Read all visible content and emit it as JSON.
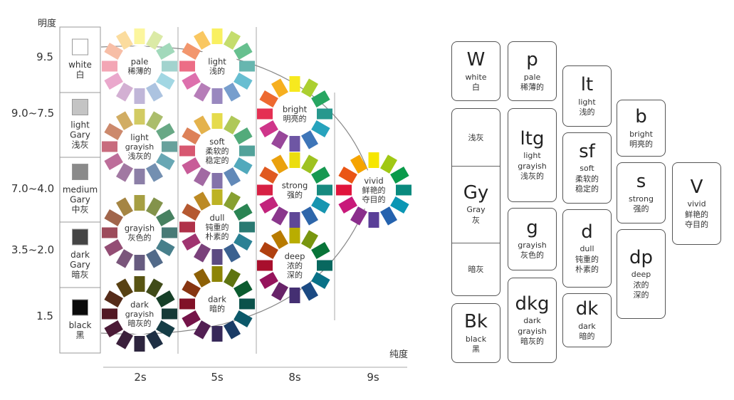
{
  "diagram": {
    "vertical_axis_label": "明度",
    "horizontal_axis_label": "纯度",
    "lightness_ticks": [
      "9.5",
      "9.0~7.5",
      "7.0~4.0",
      "3.5~2.0",
      "1.5"
    ],
    "chroma_ticks": [
      "2s",
      "5s",
      "8s",
      "9s"
    ],
    "grey_scale": [
      {
        "lines": [
          "white",
          "白"
        ],
        "swatch": "#ffffff"
      },
      {
        "lines": [
          "light",
          "Gary",
          "浅灰"
        ],
        "swatch": "#c4c4c4"
      },
      {
        "lines": [
          "medium",
          "Gary",
          "中灰"
        ],
        "swatch": "#8a8a8a"
      },
      {
        "lines": [
          "dark",
          "Gary",
          "暗灰"
        ],
        "swatch": "#444444"
      },
      {
        "lines": [
          "black",
          "黑"
        ],
        "swatch": "#0a0a0a"
      }
    ],
    "wheels": [
      {
        "id": "pale",
        "lines": [
          "pale",
          "稀薄的"
        ],
        "tone": "p"
      },
      {
        "id": "light-grayish",
        "lines": [
          "light",
          "grayish",
          "浅灰的"
        ],
        "tone": "ltg"
      },
      {
        "id": "grayish",
        "lines": [
          "grayish",
          "灰色的"
        ],
        "tone": "g"
      },
      {
        "id": "dark-grayish",
        "lines": [
          "dark",
          "grayish",
          "暗灰的"
        ],
        "tone": "dkg"
      },
      {
        "id": "light",
        "lines": [
          "light",
          "浅的"
        ],
        "tone": "lt"
      },
      {
        "id": "soft",
        "lines": [
          "soft",
          "柔软的",
          "稳定的"
        ],
        "tone": "sf"
      },
      {
        "id": "dull",
        "lines": [
          "dull",
          "钝重的",
          "朴素的"
        ],
        "tone": "d"
      },
      {
        "id": "dark",
        "lines": [
          "dark",
          "暗的"
        ],
        "tone": "dk"
      },
      {
        "id": "bright",
        "lines": [
          "bright",
          "明亮的"
        ],
        "tone": "b"
      },
      {
        "id": "strong",
        "lines": [
          "strong",
          "强的"
        ],
        "tone": "s"
      },
      {
        "id": "deep",
        "lines": [
          "deep",
          "浓的",
          "深的"
        ],
        "tone": "dp"
      },
      {
        "id": "vivid",
        "lines": [
          "vivid",
          "鲜艳的",
          "夺目的"
        ],
        "tone": "v"
      }
    ],
    "hues": [
      "#f6e600",
      "#a0c814",
      "#0a9a4b",
      "#0a8a7e",
      "#0a96b4",
      "#2462ae",
      "#5a3f98",
      "#8a2e8c",
      "#c8197a",
      "#e0143c",
      "#ea5514",
      "#f5a400"
    ]
  },
  "legend": {
    "W": {
      "code": "W",
      "en": "white",
      "zh": "白"
    },
    "p": {
      "code": "p",
      "en": "pale",
      "zh": "稀薄的"
    },
    "lt": {
      "code": "lt",
      "en": "light",
      "zh": "浅的"
    },
    "b": {
      "code": "b",
      "en": "bright",
      "zh": "明亮的"
    },
    "Gy": {
      "upper": "浅灰",
      "code": "Gy",
      "en": "Gray",
      "zh": "灰",
      "lower": "暗灰"
    },
    "ltg": {
      "code": "ltg",
      "en1": "light",
      "en2": "grayish",
      "zh": "浅灰的"
    },
    "sf": {
      "code": "sf",
      "en": "soft",
      "zh1": "柔软的",
      "zh2": "稳定的"
    },
    "s": {
      "code": "s",
      "en": "strong",
      "zh": "强的"
    },
    "V": {
      "code": "V",
      "en": "vivid",
      "zh1": "鲜艳的",
      "zh2": "夺目的"
    },
    "g": {
      "code": "g",
      "en": "grayish",
      "zh": "灰色的"
    },
    "d": {
      "code": "d",
      "en": "dull",
      "zh1": "钝重的",
      "zh2": "朴素的"
    },
    "dp": {
      "code": "dp",
      "en": "deep",
      "zh1": "浓的",
      "zh2": "深的"
    },
    "Bk": {
      "code": "Bk",
      "en": "black",
      "zh": "黑"
    },
    "dkg": {
      "code": "dkg",
      "en1": "dark",
      "en2": "grayish",
      "zh": "暗灰的"
    },
    "dk": {
      "code": "dk",
      "en": "dark",
      "zh": "暗的"
    }
  }
}
